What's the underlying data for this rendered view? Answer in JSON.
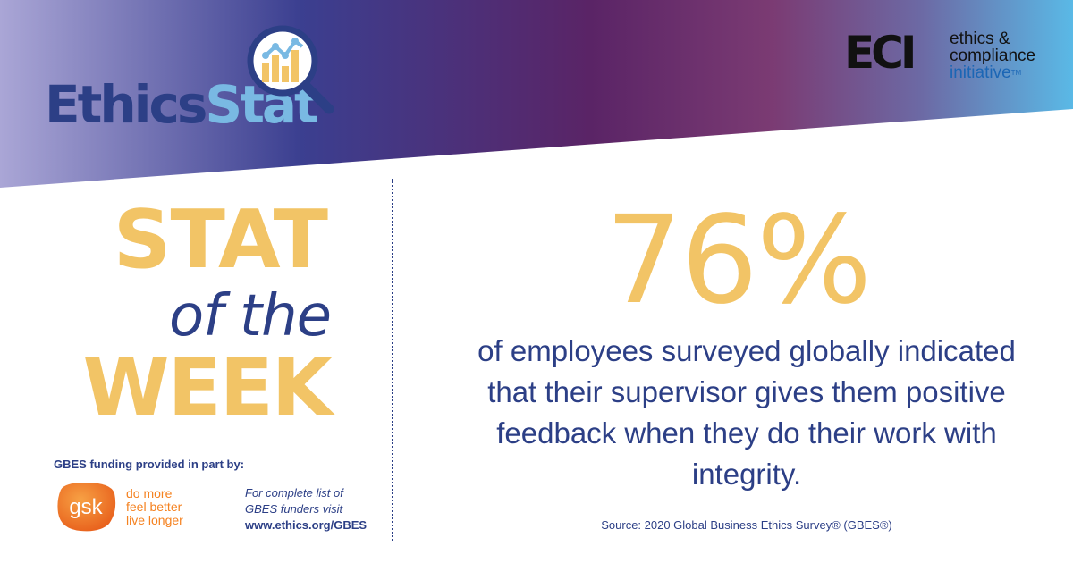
{
  "brand": {
    "word_part1": "Ethics",
    "word_part2": "Stat"
  },
  "eci": {
    "mark": "ECI",
    "line1": "ethics &",
    "line2": "compliance",
    "line3": "initiative",
    "tm": "TM"
  },
  "stat_of_week": {
    "line1": "STAT",
    "line2": "of the",
    "line3": "WEEK"
  },
  "statistic": {
    "value": "76%",
    "description": "of employees surveyed globally indicated that their supervisor gives them positive feedback when they do their work with integrity."
  },
  "source": "Source: 2020 Global Business Ethics Survey® (GBES®)",
  "funding": {
    "heading": "GBES funding provided in part by:",
    "sponsor_logo_text": "gsk",
    "sponsor_tagline_1": "do more",
    "sponsor_tagline_2": "feel better",
    "sponsor_tagline_3": "live longer",
    "funders_line1": "For complete list of",
    "funders_line2": "GBES funders visit",
    "funders_url": "www.ethics.org/GBES"
  },
  "colors": {
    "navy": "#2c3f86",
    "gold": "#f2c466",
    "light_blue": "#79b9e3",
    "gsk_orange": "#f58220",
    "banner_gradient": [
      "#a9a4d4",
      "#3a3d8e",
      "#5c2266",
      "#7a3a72",
      "#5fb8e4"
    ]
  },
  "icons": [
    "magnifier-chart-icon",
    "gsk-logo"
  ]
}
